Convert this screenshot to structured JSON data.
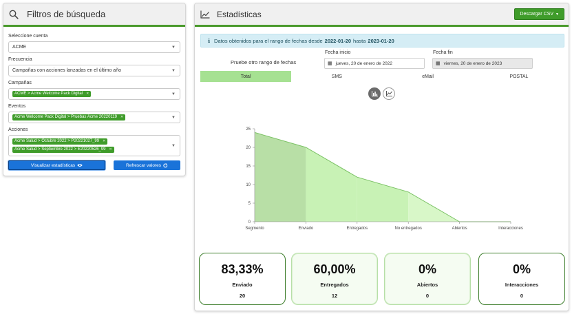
{
  "filters": {
    "title": "Filtros de búsqueda",
    "cuenta_label": "Seleccione cuenta",
    "cuenta_value": "ACME",
    "frecuencia_label": "Frecuencia",
    "frecuencia_value": "Campañas con acciones lanzadas en el último año",
    "campanas_label": "Campañas",
    "campanas_tags": [
      "ACME > Acme Welcome Pack Digital"
    ],
    "eventos_label": "Eventos",
    "eventos_tags": [
      "Acme Welcome Pack Digital > Pruebas Acme 20220119"
    ],
    "acciones_label": "Acciones",
    "acciones_tags": [
      "Acme Salud > Octubre 2022 > P20221027_99",
      "Acme Salud > Septiembre 2022 > E20220526_99"
    ],
    "visualizar_label": "Visualizar estadísticas",
    "refrescar_label": "Refrescar valores"
  },
  "stats": {
    "title": "Estadísticas",
    "csv_label": "Descargar CSV",
    "alert_prefix": "Datos obtenidos para el rango de fechas desde",
    "alert_from": "2022-01-20",
    "alert_mid": "hasta",
    "alert_to": "2023-01-20",
    "range_hint": "Pruebe otro rango de fechas",
    "fecha_inicio_label": "Fecha inicio",
    "fecha_inicio_value": "jueves, 20 de enero de 2022",
    "fecha_fin_label": "Fecha fin",
    "fecha_fin_value": "viernes, 20 de enero de 2023",
    "tabs": [
      "Total",
      "SMS",
      "eMail",
      "POSTAL"
    ],
    "active_tab": "Total",
    "cards": [
      {
        "pct": "83,33%",
        "name": "Enviado",
        "count": "20"
      },
      {
        "pct": "60,00%",
        "name": "Entregados",
        "count": "12"
      },
      {
        "pct": "0%",
        "name": "Abiertos",
        "count": "0"
      },
      {
        "pct": "0%",
        "name": "Interacciones",
        "count": "0"
      }
    ]
  },
  "colors": {
    "primary_green": "#3f9c2a",
    "button_blue": "#1a73d9",
    "alert_bg": "#d5edf5",
    "tab_active": "#a6e192"
  },
  "chart_data": {
    "type": "area",
    "categories": [
      "Segmento",
      "Enviado",
      "Entregados",
      "No entregados",
      "Abiertos",
      "Interacciones"
    ],
    "values": [
      24,
      20,
      12,
      8,
      0,
      0
    ],
    "ylim": [
      0,
      25
    ],
    "yticks": [
      0,
      5,
      10,
      15,
      20,
      25
    ],
    "grid": false,
    "legend": "none"
  }
}
